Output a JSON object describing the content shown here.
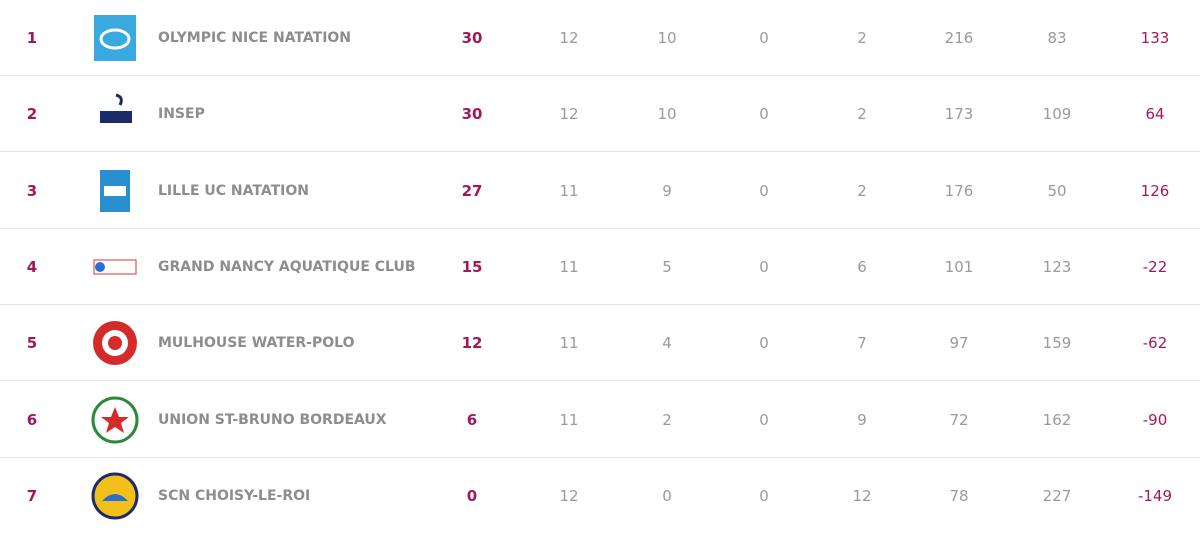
{
  "table": {
    "rows": [
      [
        1,
        "OLYMPIC NICE NATATION",
        30,
        12,
        10,
        0,
        2,
        216,
        83,
        133
      ],
      [
        2,
        "INSEP",
        30,
        12,
        10,
        0,
        2,
        173,
        109,
        64
      ],
      [
        3,
        "LILLE UC NATATION",
        27,
        11,
        9,
        0,
        2,
        176,
        50,
        126
      ],
      [
        4,
        "GRAND NANCY AQUATIQUE CLUB",
        15,
        11,
        5,
        0,
        6,
        101,
        123,
        -22
      ],
      [
        5,
        "MULHOUSE WATER-POLO",
        12,
        11,
        4,
        0,
        7,
        97,
        159,
        -62
      ],
      [
        6,
        "UNION ST-BRUNO BORDEAUX",
        6,
        11,
        2,
        0,
        9,
        72,
        162,
        -90
      ],
      [
        7,
        "SCN CHOISY-LE-ROI",
        0,
        12,
        0,
        0,
        12,
        78,
        227,
        -149
      ]
    ]
  }
}
